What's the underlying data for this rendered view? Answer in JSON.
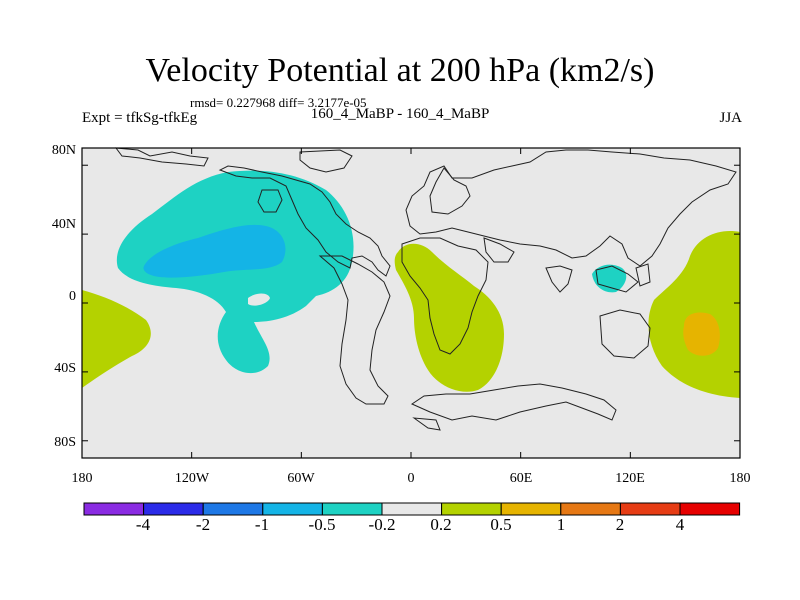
{
  "chart_data": {
    "type": "heatmap",
    "title": "Velocity Potential at 200 hPa (km2/s)",
    "stats_line": "rmsd= 0.227968  diff= 3.2177e-05",
    "left_label": "Expt = tfkSg-tfkEg",
    "center_label": "160_4_MaBP - 160_4_MaBP",
    "season": "JJA",
    "x_ticks": [
      "180",
      "120W",
      "60W",
      "0",
      "60E",
      "120E",
      "180"
    ],
    "y_ticks": [
      "80N",
      "40N",
      "0",
      "40S",
      "80S"
    ],
    "xlim": [
      -180,
      180
    ],
    "ylim": [
      -90,
      90
    ],
    "colorbar": {
      "labels": [
        "-4",
        "-2",
        "-1",
        "-0.5",
        "-0.2",
        "0.2",
        "0.5",
        "1",
        "2",
        "4"
      ],
      "colors": [
        "#8a2be2",
        "#2b2be8",
        "#1e78e6",
        "#14b4e6",
        "#1ed2c3",
        "#e8e8e8",
        "#b4d200",
        "#e6b400",
        "#e67814",
        "#e63c14",
        "#e60000"
      ]
    },
    "contour_regions": [
      {
        "name": "north-pacific-negative",
        "level": "-0.5 to -0.2"
      },
      {
        "name": "north-pacific-core",
        "level": "-1 to -0.5"
      },
      {
        "name": "southeast-asia-negative",
        "level": "-0.5 to -0.2"
      },
      {
        "name": "africa-positive",
        "level": "0.2 to 0.5"
      },
      {
        "name": "southeast-pacific-positive",
        "level": "0.2 to 0.5"
      },
      {
        "name": "west-pacific-positive",
        "level": "0.2 to 0.5"
      },
      {
        "name": "west-pacific-core",
        "level": "0.5 to 1"
      }
    ]
  }
}
